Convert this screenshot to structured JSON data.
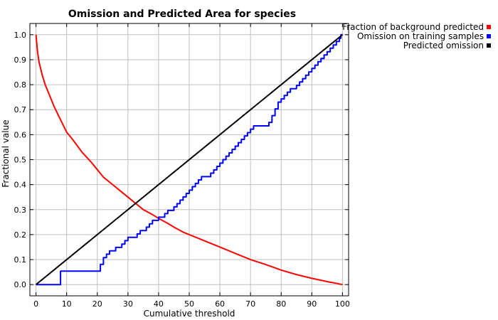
{
  "chart_data": {
    "type": "line",
    "title": "Omission and Predicted Area for species",
    "xlabel": "Cumulative threshold",
    "ylabel": "Fractional value",
    "xlim": [
      -2,
      102
    ],
    "ylim": [
      -0.045,
      1.045
    ],
    "xticks": [
      0,
      10,
      20,
      30,
      40,
      50,
      60,
      70,
      80,
      90,
      100
    ],
    "yticks": [
      0.0,
      0.1,
      0.2,
      0.3,
      0.4,
      0.5,
      0.6,
      0.7,
      0.8,
      0.9,
      1.0
    ],
    "xtick_labels": [
      "0",
      "10",
      "20",
      "30",
      "40",
      "50",
      "60",
      "70",
      "80",
      "90",
      "100"
    ],
    "ytick_labels": [
      "0.0",
      "0.1",
      "0.2",
      "0.3",
      "0.4",
      "0.5",
      "0.6",
      "0.7",
      "0.8",
      "0.9",
      "1.0"
    ],
    "grid": true,
    "legend_position": "outside-top-right",
    "series": [
      {
        "name": "Fraction of background predicted",
        "color": "#ff0000",
        "x": [
          0,
          0.5,
          1,
          2,
          3,
          4,
          5,
          6,
          8,
          10,
          12,
          15,
          18,
          20,
          22,
          25,
          28,
          30,
          33,
          35,
          38,
          40,
          43,
          45,
          48,
          50,
          55,
          60,
          65,
          70,
          75,
          80,
          85,
          90,
          95,
          98,
          100
        ],
        "y": [
          1.0,
          0.93,
          0.89,
          0.84,
          0.8,
          0.77,
          0.74,
          0.71,
          0.66,
          0.61,
          0.58,
          0.53,
          0.49,
          0.46,
          0.43,
          0.4,
          0.37,
          0.35,
          0.32,
          0.3,
          0.28,
          0.265,
          0.245,
          0.23,
          0.21,
          0.2,
          0.175,
          0.15,
          0.125,
          0.1,
          0.08,
          0.058,
          0.04,
          0.025,
          0.012,
          0.005,
          0.0
        ]
      },
      {
        "name": "Omission on training samples",
        "color": "#0000ff",
        "step": true,
        "x": [
          0,
          8,
          21,
          22,
          23,
          24,
          26,
          28,
          29,
          30,
          33,
          34,
          36,
          37,
          38,
          40,
          42,
          43,
          45,
          46,
          47,
          48,
          49,
          50,
          51,
          52,
          53,
          54,
          57,
          58,
          59,
          60,
          61,
          62,
          63,
          64,
          65,
          66,
          67,
          68,
          69,
          70,
          71,
          76,
          77,
          78,
          79,
          80,
          81,
          82,
          83,
          85,
          86,
          87,
          88,
          89,
          90,
          91,
          92,
          93,
          94,
          95,
          96,
          97,
          98,
          99,
          99.5,
          100
        ],
        "y": [
          0,
          0.054,
          0.081,
          0.108,
          0.122,
          0.135,
          0.149,
          0.162,
          0.176,
          0.189,
          0.203,
          0.216,
          0.23,
          0.243,
          0.257,
          0.27,
          0.284,
          0.297,
          0.311,
          0.324,
          0.338,
          0.351,
          0.365,
          0.378,
          0.392,
          0.405,
          0.419,
          0.432,
          0.446,
          0.459,
          0.473,
          0.486,
          0.5,
          0.514,
          0.527,
          0.541,
          0.554,
          0.568,
          0.581,
          0.595,
          0.608,
          0.622,
          0.635,
          0.649,
          0.676,
          0.703,
          0.73,
          0.743,
          0.757,
          0.77,
          0.784,
          0.797,
          0.811,
          0.824,
          0.838,
          0.851,
          0.865,
          0.878,
          0.892,
          0.905,
          0.919,
          0.932,
          0.946,
          0.959,
          0.973,
          0.986,
          1.0,
          1.0
        ]
      },
      {
        "name": "Predicted omission",
        "color": "#000000",
        "x": [
          0,
          100
        ],
        "y": [
          0,
          1
        ]
      }
    ]
  }
}
